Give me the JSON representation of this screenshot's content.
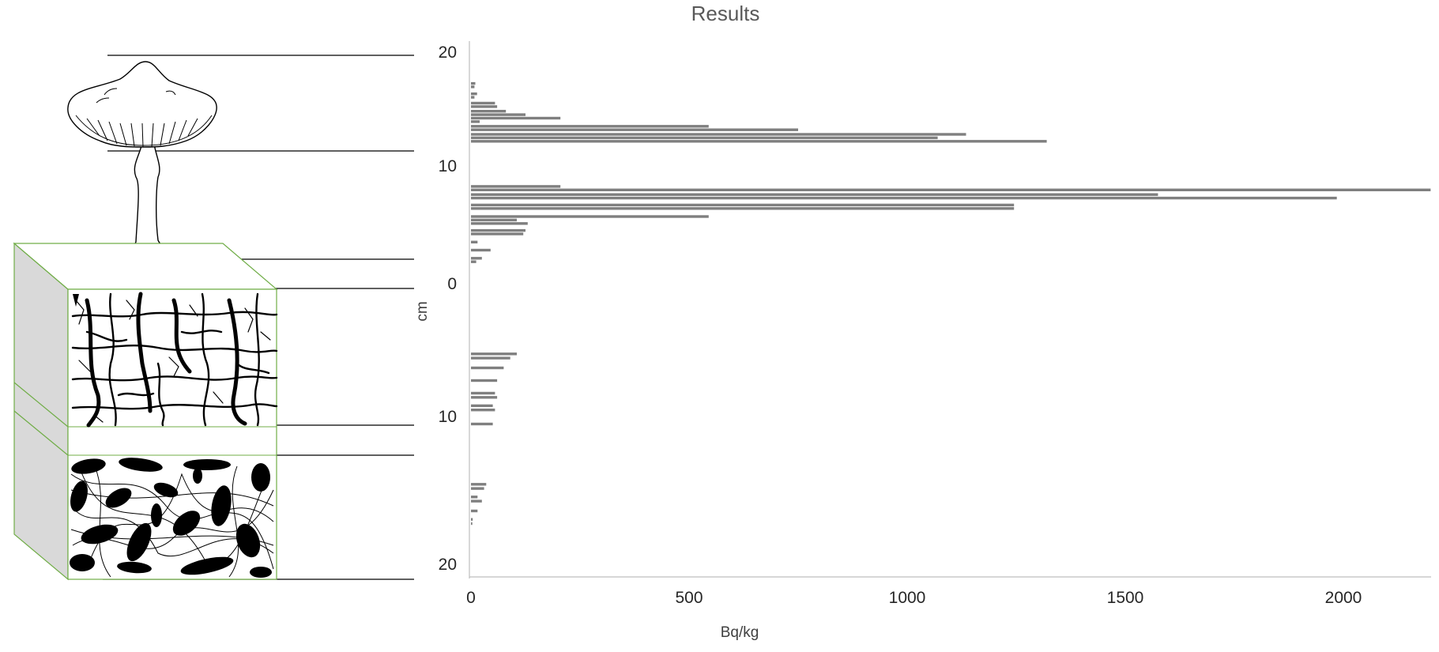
{
  "chart_data": {
    "type": "bar",
    "orientation": "horizontal",
    "title": "Results",
    "xlabel": "Bq/kg",
    "ylabel": "cm",
    "xlim": [
      0,
      2200
    ],
    "xticks": [
      "0",
      "500",
      "1000",
      "1500",
      "2000"
    ],
    "yticks": [
      "20",
      "10",
      "0",
      "10",
      "20"
    ],
    "grid": false,
    "legend": "none",
    "bar_color": "#7f7f7f",
    "series": [
      {
        "values": [
          {
            "depth": 17.3,
            "value": 10
          },
          {
            "depth": 17.0,
            "value": 8
          },
          {
            "depth": 16.4,
            "value": 14
          },
          {
            "depth": 16.1,
            "value": 8
          },
          {
            "depth": 15.6,
            "value": 55
          },
          {
            "depth": 15.3,
            "value": 60
          },
          {
            "depth": 14.9,
            "value": 80
          },
          {
            "depth": 14.6,
            "value": 125
          },
          {
            "depth": 14.3,
            "value": 205
          },
          {
            "depth": 14.0,
            "value": 20
          },
          {
            "depth": 13.6,
            "value": 545
          },
          {
            "depth": 13.3,
            "value": 750
          },
          {
            "depth": 12.9,
            "value": 1135
          },
          {
            "depth": 12.6,
            "value": 1070
          },
          {
            "depth": 12.3,
            "value": 1320
          },
          {
            "depth": 8.4,
            "value": 205
          },
          {
            "depth": 8.1,
            "value": 2200
          },
          {
            "depth": 7.7,
            "value": 1575
          },
          {
            "depth": 7.4,
            "value": 1985
          },
          {
            "depth": 6.8,
            "value": 1245
          },
          {
            "depth": 6.5,
            "value": 1245
          },
          {
            "depth": 5.8,
            "value": 545
          },
          {
            "depth": 5.5,
            "value": 105
          },
          {
            "depth": 5.2,
            "value": 130
          },
          {
            "depth": 4.6,
            "value": 125
          },
          {
            "depth": 4.3,
            "value": 120
          },
          {
            "depth": 3.6,
            "value": 15
          },
          {
            "depth": 2.9,
            "value": 45
          },
          {
            "depth": 2.2,
            "value": 25
          },
          {
            "depth": 1.9,
            "value": 12
          },
          {
            "depth": -5.0,
            "value": 105
          },
          {
            "depth": -5.3,
            "value": 90
          },
          {
            "depth": -6.0,
            "value": 75
          },
          {
            "depth": -6.9,
            "value": 60
          },
          {
            "depth": -7.8,
            "value": 55
          },
          {
            "depth": -8.1,
            "value": 60
          },
          {
            "depth": -8.7,
            "value": 50
          },
          {
            "depth": -9.0,
            "value": 55
          },
          {
            "depth": -10.0,
            "value": 50
          },
          {
            "depth": -14.3,
            "value": 35
          },
          {
            "depth": -14.6,
            "value": 30
          },
          {
            "depth": -15.2,
            "value": 15
          },
          {
            "depth": -15.5,
            "value": 25
          },
          {
            "depth": -16.2,
            "value": 15
          },
          {
            "depth": -16.8,
            "value": 4
          },
          {
            "depth": -17.1,
            "value": 3
          }
        ]
      }
    ]
  }
}
